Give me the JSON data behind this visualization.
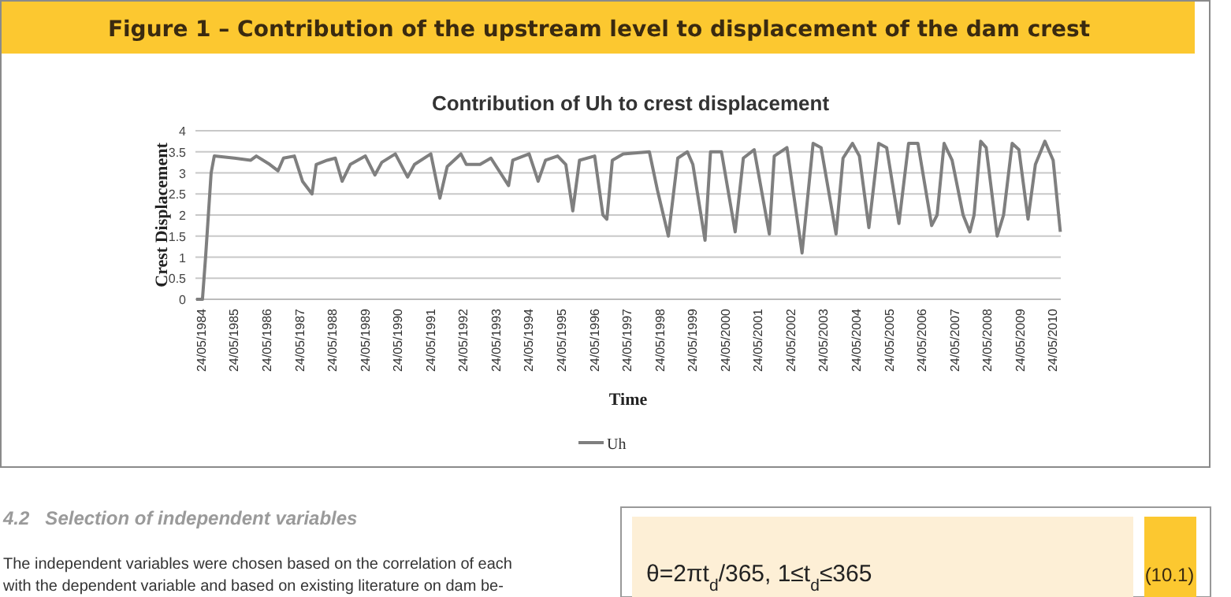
{
  "chart_data": {
    "type": "line",
    "title": "Figure 1 – Contribution of the upstream level to displacement of the dam crest",
    "subtitle": "Contribution of Uh to crest displacement",
    "xlabel": "Time",
    "ylabel": "Crest Displacement",
    "annotations": [
      "4.2   Selection of independent variables",
      "The independent variables were chosen based on the correlation of each",
      "with the dependent variable and based on existing literature on dam be-",
      "θ=2πt$_{d}$/365,  1≤t$_{d}$≤365",
      "(10.1)"
    ],
    "x": [
      "1984-04-01",
      "1984-06-10",
      "1984-07-15",
      "1984-08-15",
      "1984-09-15",
      "1984-10-20",
      "1985-06-01",
      "1985-12-01",
      "1986-02-01",
      "1986-07-01",
      "1986-10-01",
      "1986-12-01",
      "1987-04-01",
      "1987-07-01",
      "1987-10-15",
      "1987-12-01",
      "1988-04-01",
      "1988-07-01",
      "1988-09-15",
      "1988-12-15",
      "1989-06-01",
      "1989-09-15",
      "1989-12-01",
      "1990-05-01",
      "1990-09-15",
      "1990-12-01",
      "1991-06-01",
      "1991-09-10",
      "1991-12-01",
      "1992-05-01",
      "1992-07-01",
      "1992-12-01",
      "1993-04-01",
      "1993-10-15",
      "1993-12-01",
      "1994-06-01",
      "1994-09-10",
      "1994-12-01",
      "1995-04-15",
      "1995-07-15",
      "1995-10-01",
      "1995-12-15",
      "1996-06-01",
      "1996-09-01",
      "1996-10-15",
      "1996-12-15",
      "1997-04-15",
      "1998-02-01",
      "1998-05-01",
      "1998-09-01",
      "1998-12-15",
      "1999-04-01",
      "1999-06-01",
      "1999-10-15",
      "1999-12-15",
      "2000-04-15",
      "2000-09-15",
      "2000-12-15",
      "2001-04-15",
      "2001-10-01",
      "2001-11-25",
      "2002-04-15",
      "2002-10-01",
      "2003-02-01",
      "2003-05-01",
      "2003-10-15",
      "2004-01-01",
      "2004-04-15",
      "2004-07-01",
      "2004-10-15",
      "2005-02-01",
      "2005-05-01",
      "2005-09-15",
      "2006-01-01",
      "2006-04-15",
      "2006-09-15",
      "2006-11-15",
      "2007-02-01",
      "2007-05-01",
      "2007-09-01",
      "2007-11-15",
      "2008-01-01",
      "2008-03-15",
      "2008-05-15",
      "2008-09-15",
      "2008-11-25",
      "2009-03-01",
      "2009-05-15",
      "2009-08-25",
      "2009-11-15",
      "2010-03-01",
      "2010-06-01",
      "2010-08-20"
    ],
    "series": [
      {
        "name": "Uh",
        "color": "#7f7f7f",
        "values": [
          0,
          0,
          1.0,
          2.0,
          3.0,
          3.4,
          3.35,
          3.3,
          3.4,
          3.2,
          3.05,
          3.35,
          3.4,
          2.8,
          2.5,
          3.2,
          3.3,
          3.35,
          2.8,
          3.2,
          3.4,
          2.95,
          3.25,
          3.45,
          2.9,
          3.2,
          3.45,
          2.4,
          3.15,
          3.45,
          3.2,
          3.2,
          3.35,
          2.7,
          3.3,
          3.45,
          2.8,
          3.3,
          3.4,
          3.2,
          2.1,
          3.3,
          3.4,
          2.0,
          1.9,
          3.3,
          3.45,
          3.5,
          2.6,
          1.5,
          3.35,
          3.5,
          3.2,
          1.4,
          3.5,
          3.5,
          1.6,
          3.35,
          3.55,
          1.55,
          3.4,
          3.6,
          1.1,
          3.7,
          3.6,
          1.55,
          3.35,
          3.7,
          3.4,
          1.7,
          3.7,
          3.6,
          1.8,
          3.7,
          3.7,
          1.75,
          2.0,
          3.7,
          3.3,
          2.0,
          1.6,
          2.0,
          3.75,
          3.6,
          1.5,
          2.0,
          3.7,
          3.55,
          1.9,
          3.2,
          3.75,
          3.3,
          1.6
        ]
      }
    ],
    "xlim": [
      "1984-03-24",
      "2010-08-25"
    ],
    "xticks": [
      {
        "value": "1984-05-24",
        "label": "24/05/1984"
      },
      {
        "value": "1985-05-24",
        "label": "24/05/1985"
      },
      {
        "value": "1986-05-24",
        "label": "24/05/1986"
      },
      {
        "value": "1987-05-24",
        "label": "24/05/1987"
      },
      {
        "value": "1988-05-24",
        "label": "24/05/1988"
      },
      {
        "value": "1989-05-24",
        "label": "24/05/1989"
      },
      {
        "value": "1990-05-24",
        "label": "24/05/1990"
      },
      {
        "value": "1991-05-24",
        "label": "24/05/1991"
      },
      {
        "value": "1992-05-24",
        "label": "24/05/1992"
      },
      {
        "value": "1993-05-24",
        "label": "24/05/1993"
      },
      {
        "value": "1994-05-24",
        "label": "24/05/1994"
      },
      {
        "value": "1995-05-24",
        "label": "24/05/1995"
      },
      {
        "value": "1996-05-24",
        "label": "24/05/1996"
      },
      {
        "value": "1997-05-24",
        "label": "24/05/1997"
      },
      {
        "value": "1998-05-24",
        "label": "24/05/1998"
      },
      {
        "value": "1999-05-24",
        "label": "24/05/1999"
      },
      {
        "value": "2000-05-24",
        "label": "24/05/2000"
      },
      {
        "value": "2001-05-24",
        "label": "24/05/2001"
      },
      {
        "value": "2002-05-24",
        "label": "24/05/2002"
      },
      {
        "value": "2003-05-24",
        "label": "24/05/2003"
      },
      {
        "value": "2004-05-24",
        "label": "24/05/2004"
      },
      {
        "value": "2005-05-24",
        "label": "24/05/2005"
      },
      {
        "value": "2006-05-24",
        "label": "24/05/2006"
      },
      {
        "value": "2007-05-24",
        "label": "24/05/2007"
      },
      {
        "value": "2008-05-24",
        "label": "24/05/2008"
      },
      {
        "value": "2009-05-24",
        "label": "24/05/2009"
      },
      {
        "value": "2010-05-24",
        "label": "24/05/2010"
      }
    ],
    "ylim": [
      0,
      4
    ],
    "yticks": [
      0,
      0.5,
      1,
      1.5,
      2,
      2.5,
      3,
      3.5,
      4
    ],
    "grid": "y",
    "legend": "bottom",
    "marker": "none",
    "line_style": "solid"
  }
}
